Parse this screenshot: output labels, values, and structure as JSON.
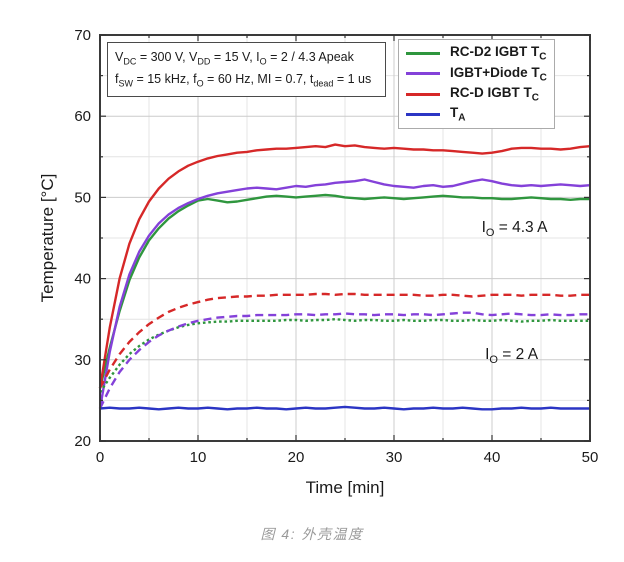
{
  "figure": {
    "caption": "图 4: 外壳温度"
  },
  "params_box": {
    "line1": "V~DC~ = 300 V, V~DD~ = 15 V, I~O~ = 2 / 4.3 Apeak",
    "line2": "f~SW~ = 15 kHz, f~O~ = 60 Hz, MI = 0.7, t~dead~ = 1 us"
  },
  "chart_data": {
    "type": "line",
    "title": "",
    "xlabel": "Time [min]",
    "ylabel": "Temperature [°C]",
    "xlim": [
      0,
      50
    ],
    "ylim": [
      20,
      70
    ],
    "xticks": [
      0,
      10,
      20,
      30,
      40,
      50
    ],
    "yticks": [
      20,
      30,
      40,
      50,
      60,
      70
    ],
    "minor_step": 5,
    "grid": "major and minor, light gray",
    "legend_position": "top-right",
    "frame_color": "#3a3a3a",
    "major_grid_color": "#cccccc",
    "minor_grid_color": "#e4e4e4",
    "annotations": [
      {
        "text": "I~O~ = 4.3 A",
        "x": 42.3,
        "y": 46.1
      },
      {
        "text": "I~O~ = 2 A",
        "x": 42.0,
        "y": 30.5
      }
    ],
    "legend": [
      {
        "label": "RC-D2 IGBT T~C~",
        "color": "#2f963e"
      },
      {
        "label": "IGBT+Diode T~C~",
        "color": "#8441d9"
      },
      {
        "label": "RC-D IGBT T~C~",
        "color": "#d62828"
      },
      {
        "label": "T~A~",
        "color": "#2b35c4"
      }
    ],
    "x": [
      0,
      1,
      2,
      3,
      4,
      5,
      6,
      7,
      8,
      9,
      10,
      11,
      12,
      13,
      14,
      15,
      16,
      17,
      18,
      19,
      20,
      21,
      22,
      23,
      24,
      25,
      26,
      27,
      28,
      29,
      30,
      31,
      32,
      33,
      34,
      35,
      36,
      37,
      38,
      39,
      40,
      41,
      42,
      43,
      44,
      45,
      46,
      47,
      48,
      49,
      50
    ],
    "series": [
      {
        "key": "rc-d2-igbt-tc-io-4-3a",
        "name": "RC-D2 IGBT T~C~ (I_O = 4.3 A)",
        "color": "#2f963e",
        "line_style": "solid",
        "values": [
          26.5,
          31.5,
          36.0,
          39.8,
          42.6,
          44.7,
          46.2,
          47.4,
          48.3,
          49.0,
          49.6,
          49.8,
          49.6,
          49.4,
          49.5,
          49.7,
          49.9,
          50.1,
          50.2,
          50.1,
          50.0,
          50.1,
          50.2,
          50.3,
          50.2,
          50.0,
          49.9,
          49.8,
          49.9,
          50.0,
          49.9,
          49.8,
          49.9,
          50.0,
          50.1,
          50.2,
          50.1,
          50.0,
          50.0,
          49.9,
          49.9,
          49.8,
          49.8,
          49.9,
          50.0,
          49.9,
          49.8,
          49.8,
          49.7,
          49.8,
          49.8
        ]
      },
      {
        "key": "igbt-diode-tc-io-4-3a",
        "name": "IGBT+Diode T~C~ (I_O = 4.3 A)",
        "color": "#8441d9",
        "line_style": "solid",
        "values": [
          24.0,
          31.0,
          36.5,
          40.5,
          43.3,
          45.3,
          46.8,
          47.9,
          48.7,
          49.3,
          49.8,
          50.2,
          50.5,
          50.7,
          50.9,
          51.1,
          51.2,
          51.1,
          51.0,
          51.2,
          51.4,
          51.3,
          51.5,
          51.6,
          51.8,
          51.9,
          52.0,
          52.2,
          51.9,
          51.6,
          51.4,
          51.3,
          51.2,
          51.4,
          51.5,
          51.3,
          51.4,
          51.7,
          52.0,
          52.2,
          52.0,
          51.7,
          51.5,
          51.4,
          51.5,
          51.4,
          51.5,
          51.6,
          51.5,
          51.4,
          51.5
        ]
      },
      {
        "key": "rc-d-igbt-tc-io-4-3a",
        "name": "RC-D IGBT T~C~ (I_O = 4.3 A)",
        "color": "#d62828",
        "line_style": "solid",
        "values": [
          26.5,
          34.0,
          40.0,
          44.3,
          47.3,
          49.5,
          51.1,
          52.3,
          53.2,
          53.9,
          54.4,
          54.8,
          55.1,
          55.3,
          55.5,
          55.6,
          55.8,
          55.9,
          56.0,
          56.0,
          56.1,
          56.2,
          56.3,
          56.2,
          56.5,
          56.3,
          56.4,
          56.2,
          56.1,
          56.0,
          56.1,
          56.0,
          55.9,
          55.9,
          55.8,
          55.8,
          55.7,
          55.6,
          55.5,
          55.4,
          55.5,
          55.7,
          56.0,
          56.1,
          56.1,
          56.0,
          56.0,
          55.9,
          56.0,
          56.2,
          56.3
        ]
      },
      {
        "key": "rc-d2-igbt-tc-io-2a",
        "name": "RC-D2 IGBT T~C~ (I_O = 2 A)",
        "color": "#2f963e",
        "line_style": "dotted",
        "values": [
          26.0,
          27.8,
          29.4,
          30.7,
          31.7,
          32.5,
          33.1,
          33.6,
          34.0,
          34.3,
          34.5,
          34.6,
          34.7,
          34.7,
          34.8,
          34.8,
          34.8,
          34.8,
          34.8,
          34.9,
          34.9,
          34.8,
          34.9,
          34.9,
          35.0,
          34.9,
          34.8,
          34.9,
          34.9,
          34.8,
          34.8,
          34.9,
          34.8,
          34.8,
          34.9,
          34.9,
          34.8,
          34.8,
          34.9,
          34.8,
          34.8,
          34.9,
          34.8,
          34.7,
          34.8,
          34.8,
          34.9,
          34.8,
          34.8,
          34.8,
          34.8
        ]
      },
      {
        "key": "igbt-diode-tc-io-2a",
        "name": "IGBT+Diode T~C~ (I_O = 2 A)",
        "color": "#8441d9",
        "line_style": "dashed",
        "values": [
          24.0,
          26.5,
          28.5,
          30.0,
          31.2,
          32.2,
          33.0,
          33.6,
          34.1,
          34.5,
          34.8,
          35.0,
          35.2,
          35.3,
          35.4,
          35.4,
          35.5,
          35.5,
          35.5,
          35.5,
          35.6,
          35.6,
          35.5,
          35.6,
          35.6,
          35.7,
          35.6,
          35.6,
          35.5,
          35.6,
          35.6,
          35.5,
          35.6,
          35.6,
          35.5,
          35.6,
          35.7,
          35.8,
          35.8,
          35.6,
          35.5,
          35.6,
          35.7,
          35.6,
          35.5,
          35.5,
          35.6,
          35.5,
          35.5,
          35.6,
          35.6
        ]
      },
      {
        "key": "rc-d-igbt-tc-io-2a",
        "name": "RC-D IGBT T~C~ (I_O = 2 A)",
        "color": "#d62828",
        "line_style": "dashed",
        "values": [
          26.5,
          28.8,
          30.7,
          32.2,
          33.4,
          34.4,
          35.2,
          35.9,
          36.4,
          36.8,
          37.1,
          37.4,
          37.6,
          37.7,
          37.8,
          37.8,
          37.9,
          37.9,
          38.0,
          38.0,
          38.0,
          38.0,
          38.1,
          38.1,
          38.0,
          38.1,
          38.1,
          38.0,
          38.0,
          38.0,
          38.0,
          38.0,
          38.0,
          37.9,
          37.9,
          38.0,
          38.0,
          37.9,
          37.8,
          37.9,
          38.0,
          38.0,
          38.0,
          37.9,
          38.0,
          38.0,
          38.0,
          37.9,
          37.9,
          38.0,
          38.0
        ]
      },
      {
        "key": "ambient-ta",
        "name": "T~A~",
        "color": "#2b35c4",
        "line_style": "solid",
        "values": [
          24.0,
          24.1,
          24.0,
          24.0,
          24.1,
          24.0,
          23.9,
          24.0,
          24.1,
          24.0,
          24.0,
          24.1,
          24.0,
          23.9,
          24.0,
          24.0,
          24.1,
          24.0,
          24.0,
          23.9,
          24.0,
          24.1,
          24.0,
          24.0,
          24.1,
          24.2,
          24.1,
          24.0,
          24.0,
          24.1,
          24.0,
          23.9,
          24.0,
          24.0,
          24.1,
          24.0,
          24.0,
          24.1,
          24.0,
          23.9,
          23.9,
          24.0,
          24.0,
          24.1,
          24.0,
          24.0,
          24.1,
          24.0,
          24.0,
          24.0,
          24.0
        ]
      }
    ]
  }
}
